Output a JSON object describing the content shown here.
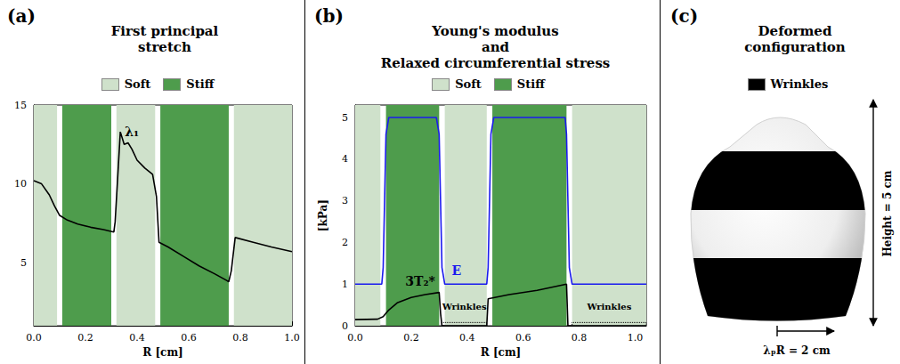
{
  "chart_data": [
    {
      "letter": "(a)",
      "title": [
        "First principal",
        "stretch"
      ],
      "type": "line",
      "xlabel": "R [cm]",
      "xlim": [
        0,
        1
      ],
      "xticks": [
        {
          "value": 0,
          "label": "0.0"
        },
        {
          "value": 0.2,
          "label": "0.2"
        },
        {
          "value": 0.4,
          "label": "0.4"
        },
        {
          "value": 0.6,
          "label": "0.6"
        },
        {
          "value": 0.8,
          "label": "0.8"
        },
        {
          "value": 1,
          "label": "1.0"
        }
      ],
      "ylim": [
        1,
        15
      ],
      "yticks": [
        5,
        10,
        15
      ],
      "grid": false,
      "legend": "top",
      "regions": [
        {
          "name": "Soft",
          "color": "#cfe1cb",
          "spans": [
            [
              0,
              0.09
            ],
            [
              0.32,
              0.47
            ],
            [
              0.775,
              1
            ]
          ]
        },
        {
          "name": "Stiff",
          "color": "#4e9c4c",
          "spans": [
            [
              0.11,
              0.3
            ],
            [
              0.49,
              0.755
            ]
          ]
        }
      ],
      "series": [
        {
          "name": "λ₁",
          "color": "#000000",
          "x": [
            0,
            0.03,
            0.06,
            0.08,
            0.1,
            0.13,
            0.17,
            0.22,
            0.27,
            0.31,
            0.315,
            0.335,
            0.35,
            0.365,
            0.38,
            0.4,
            0.43,
            0.46,
            0.475,
            0.485,
            0.52,
            0.58,
            0.64,
            0.7,
            0.755,
            0.765,
            0.78,
            0.85,
            0.92,
            1.0
          ],
          "values": [
            10.2,
            10.0,
            9.3,
            8.6,
            8.0,
            7.7,
            7.45,
            7.25,
            7.1,
            6.95,
            7.6,
            13.3,
            12.5,
            12.6,
            12.2,
            11.5,
            11.0,
            10.6,
            9.2,
            6.3,
            6.0,
            5.4,
            4.8,
            4.3,
            3.8,
            4.5,
            6.6,
            6.3,
            6.0,
            5.7
          ]
        }
      ]
    },
    {
      "letter": "(b)",
      "title": [
        "Young's modulus",
        "and",
        "Relaxed circumferential stress"
      ],
      "type": "line",
      "xlabel": "R [cm]",
      "ylabel": "[kPa]",
      "xlim": [
        0,
        1.04
      ],
      "xticks": [
        {
          "value": 0,
          "label": "0.0"
        },
        {
          "value": 0.2,
          "label": "0.2"
        },
        {
          "value": 0.4,
          "label": "0.4"
        },
        {
          "value": 0.6,
          "label": "0.6"
        },
        {
          "value": 0.8,
          "label": "0.8"
        },
        {
          "value": 1,
          "label": "1.0"
        }
      ],
      "ylim": [
        0,
        5.3
      ],
      "yticks": [
        0,
        1,
        2,
        3,
        4,
        5
      ],
      "grid": false,
      "legend": "top",
      "regions": [
        {
          "name": "Soft",
          "color": "#cfe1cb",
          "spans": [
            [
              0,
              0.09
            ],
            [
              0.32,
              0.47
            ],
            [
              0.775,
              1.04
            ]
          ]
        },
        {
          "name": "Stiff",
          "color": "#4e9c4c",
          "spans": [
            [
              0.11,
              0.3
            ],
            [
              0.49,
              0.755
            ]
          ]
        }
      ],
      "wrinkles": {
        "label": "Wrinkles",
        "height": 0.08,
        "spans": [
          [
            0.31,
            0.47
          ],
          [
            0.775,
            1.04
          ]
        ]
      },
      "series": [
        {
          "name": "E",
          "color": "#1a1aee",
          "x": [
            0,
            0.095,
            0.1,
            0.105,
            0.11,
            0.12,
            0.29,
            0.3,
            0.305,
            0.31,
            0.32,
            0.47,
            0.475,
            0.48,
            0.485,
            0.495,
            0.75,
            0.755,
            0.76,
            0.765,
            0.775,
            1.04
          ],
          "values": [
            1,
            1,
            1.4,
            3,
            4.6,
            5,
            5,
            4.6,
            3,
            1.4,
            1,
            1,
            1.4,
            3,
            4.6,
            5,
            5,
            4.6,
            3,
            1.4,
            1,
            1
          ]
        },
        {
          "name": "3T₂*",
          "color": "#000000",
          "x": [
            0,
            0.08,
            0.1,
            0.12,
            0.15,
            0.2,
            0.25,
            0.3,
            0.305,
            0.31,
            0.47,
            0.475,
            0.55,
            0.65,
            0.755,
            0.76,
            1.04
          ],
          "values": [
            0.15,
            0.16,
            0.22,
            0.38,
            0.55,
            0.68,
            0.75,
            0.8,
            0.3,
            0,
            0,
            0.65,
            0.75,
            0.85,
            1.0,
            0,
            0
          ]
        }
      ]
    }
  ],
  "diagram": {
    "letter": "(c)",
    "title": [
      "Deformed",
      "configuration"
    ],
    "legend": {
      "name": "Wrinkles",
      "color": "#000000"
    },
    "height_label": "Height = 5 cm",
    "width_label": "λₚR = 2 cm"
  }
}
